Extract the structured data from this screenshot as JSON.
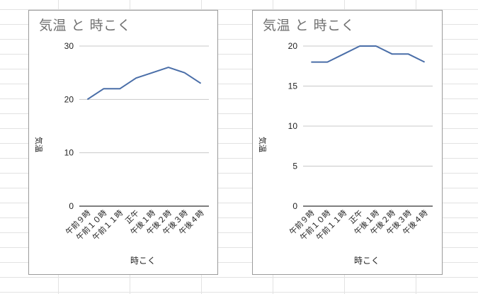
{
  "colors": {
    "line": "#4a6ea8",
    "gridline": "#c8c8c8",
    "axis": "#333333",
    "title": "#707070",
    "cell_border": "#e2e2e2",
    "chart_border": "#9a9a9a"
  },
  "chart_data": [
    {
      "type": "line",
      "title": "気温 と 時こく",
      "xlabel": "時こく",
      "ylabel": "気温",
      "categories": [
        "午前９時",
        "午前１０時",
        "午前１１時",
        "正午",
        "午後１時",
        "午後２時",
        "午後３時",
        "午後４時"
      ],
      "series": [
        {
          "name": "気温",
          "values": [
            20,
            22,
            22,
            24,
            25,
            26,
            25,
            23
          ]
        }
      ],
      "ylim": [
        0,
        30
      ],
      "yticks": [
        0,
        10,
        20,
        30
      ],
      "grid": true,
      "legend": "none"
    },
    {
      "type": "line",
      "title": "気温 と 時こく",
      "xlabel": "時こく",
      "ylabel": "気温",
      "categories": [
        "午前９時",
        "午前１０時",
        "午前１１時",
        "正午",
        "午後１時",
        "午後２時",
        "午後３時",
        "午後４時"
      ],
      "series": [
        {
          "name": "気温",
          "values": [
            18,
            18,
            19,
            20,
            20,
            19,
            19,
            18
          ]
        }
      ],
      "ylim": [
        0,
        20
      ],
      "yticks": [
        0,
        5,
        10,
        15,
        20
      ],
      "grid": true,
      "legend": "none"
    }
  ]
}
